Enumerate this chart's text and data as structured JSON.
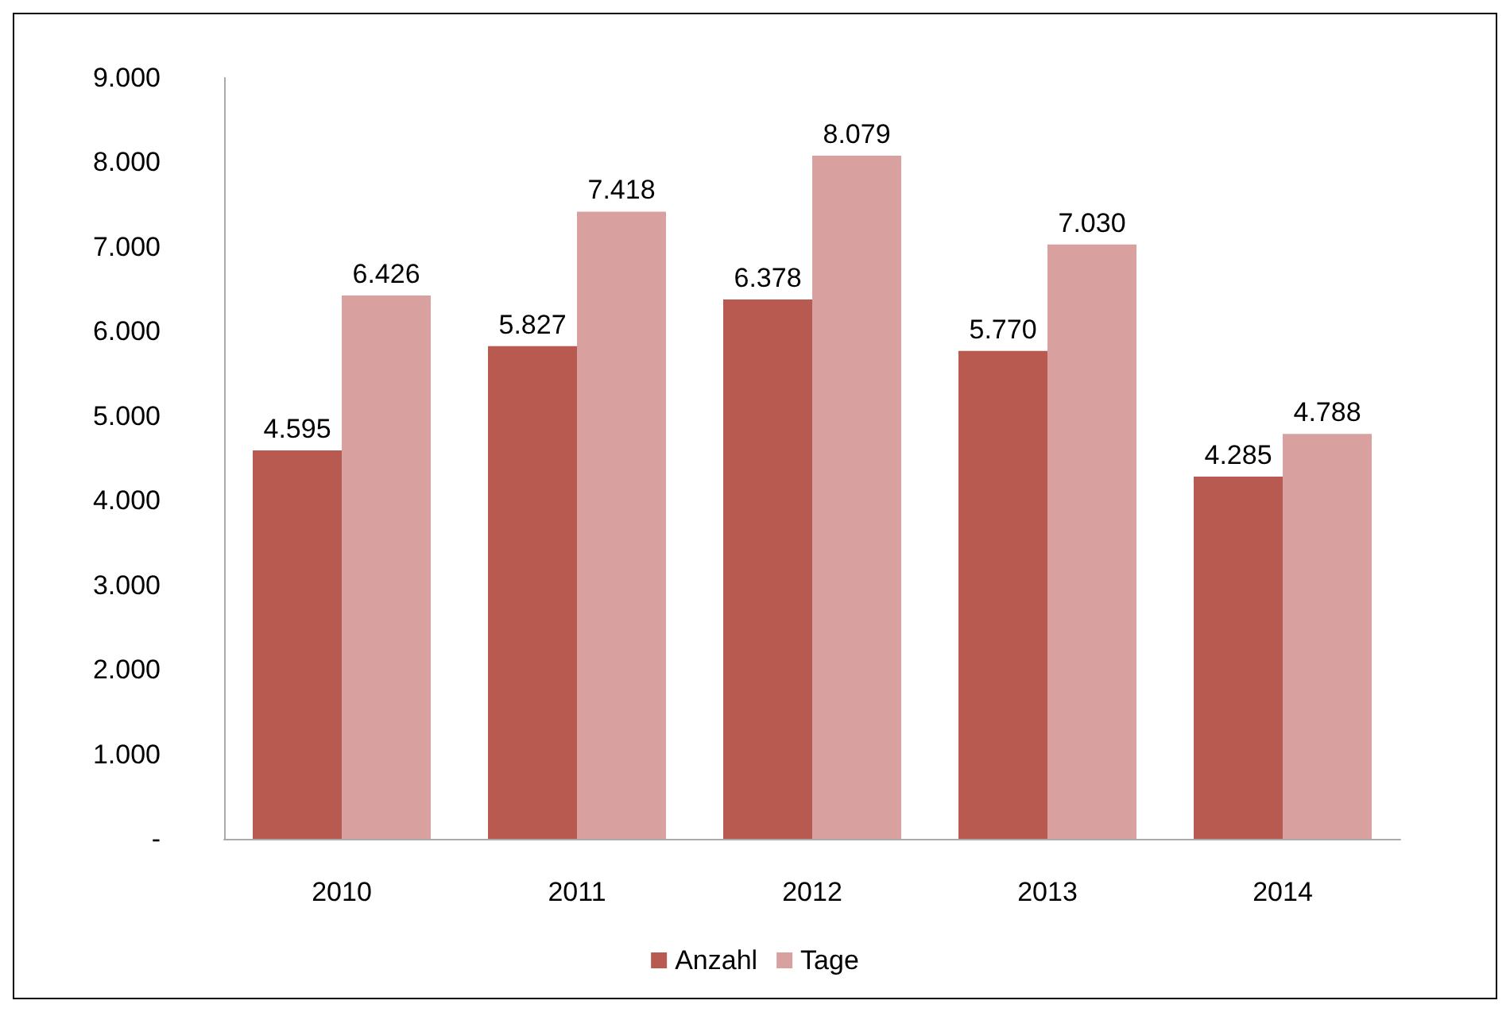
{
  "chart_data": {
    "type": "bar",
    "categories": [
      "2010",
      "2011",
      "2012",
      "2013",
      "2014"
    ],
    "series": [
      {
        "name": "Anzahl",
        "color": "#b85a4f",
        "values": [
          4595,
          5827,
          6378,
          5770,
          4285
        ],
        "value_labels": [
          "4.595",
          "5.827",
          "6.378",
          "5.770",
          "4.285"
        ]
      },
      {
        "name": "Tage",
        "color": "#d8a19f",
        "values": [
          6426,
          7418,
          8079,
          7030,
          4788
        ],
        "value_labels": [
          "6.426",
          "7.418",
          "8.079",
          "7.030",
          "4.788"
        ]
      }
    ],
    "ylim": [
      0,
      9000
    ],
    "yticks": [
      {
        "value": 0,
        "label": "-"
      },
      {
        "value": 1000,
        "label": "1.000"
      },
      {
        "value": 2000,
        "label": "2.000"
      },
      {
        "value": 3000,
        "label": "3.000"
      },
      {
        "value": 4000,
        "label": "4.000"
      },
      {
        "value": 5000,
        "label": "5.000"
      },
      {
        "value": 6000,
        "label": "6.000"
      },
      {
        "value": 7000,
        "label": "7.000"
      },
      {
        "value": 8000,
        "label": "8.000"
      },
      {
        "value": 9000,
        "label": "9.000"
      }
    ],
    "grid": false,
    "legend": "bottom"
  }
}
